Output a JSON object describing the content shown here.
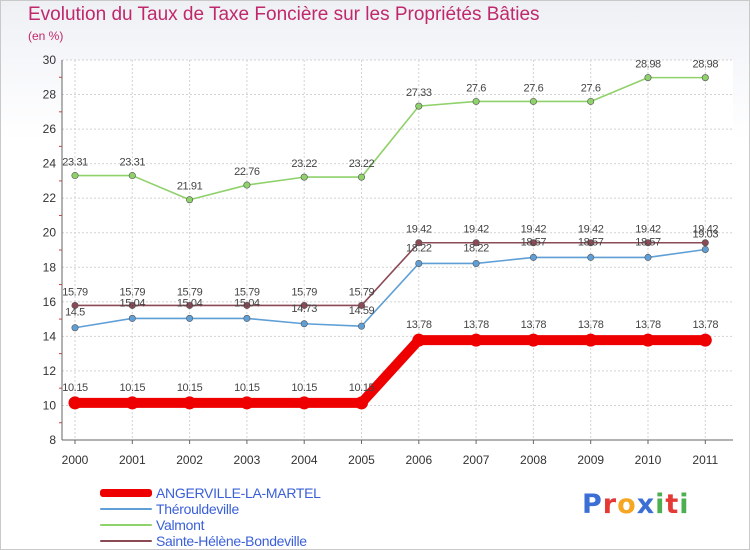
{
  "header": {
    "title": "Evolution du Taux de Taxe Foncière sur les Propriétés Bâties",
    "unit": "(en %)"
  },
  "logo": {
    "text": "Proxiti",
    "letters": [
      "P",
      "r",
      "o",
      "x",
      "i",
      "t",
      "i"
    ],
    "colors": [
      "#3b6fd6",
      "#e53935",
      "#f5a623",
      "#3b6fd6",
      "#4caf50",
      "#e53935",
      "#4caf50"
    ]
  },
  "chart_data": {
    "type": "line",
    "title": "Evolution du Taux de Taxe Foncière sur les Propriétés Bâties",
    "ylabel": "(en %)",
    "xlabel": "",
    "ylim": [
      8,
      30
    ],
    "yticks": [
      8,
      10,
      12,
      14,
      16,
      18,
      20,
      22,
      24,
      26,
      28,
      30
    ],
    "categories": [
      "2000",
      "2001",
      "2002",
      "2003",
      "2004",
      "2005",
      "2006",
      "2007",
      "2008",
      "2009",
      "2010",
      "2011"
    ],
    "legend_position": "bottom-left",
    "series": [
      {
        "name": "ANGERVILLE-LA-MARTEL",
        "color": "#ee0000",
        "values": [
          10.15,
          10.15,
          10.15,
          10.15,
          10.15,
          10.15,
          13.78,
          13.78,
          13.78,
          13.78,
          13.78,
          13.78
        ],
        "labels": [
          "10.15",
          "10.15",
          "10.15",
          "10.15",
          "10.15",
          "10.15",
          "13.78",
          "13.78",
          "13.78",
          "13.78",
          "13.78",
          "13.78"
        ]
      },
      {
        "name": "Thérouldeville",
        "color": "#5f9fd6",
        "values": [
          14.5,
          15.04,
          15.04,
          15.04,
          14.73,
          14.59,
          18.22,
          18.22,
          18.57,
          18.57,
          18.57,
          19.03
        ],
        "labels": [
          "14.5",
          "15.04",
          "15.04",
          "15.04",
          "14.73",
          "14.59",
          "18.22",
          "18.22",
          "18.57",
          "18.57",
          "18.57",
          "19.03"
        ]
      },
      {
        "name": "Valmont",
        "color": "#8fd16a",
        "values": [
          23.31,
          23.31,
          21.91,
          22.76,
          23.22,
          23.22,
          27.33,
          27.6,
          27.6,
          27.6,
          28.98,
          28.98
        ],
        "labels": [
          "23.31",
          "23.31",
          "21.91",
          "22.76",
          "23.22",
          "23.22",
          "27.33",
          "27.6",
          "27.6",
          "27.6",
          "28.98",
          "28.98"
        ]
      },
      {
        "name": "Sainte-Hélène-Bondeville",
        "color": "#8a4a56",
        "values": [
          15.79,
          15.79,
          15.79,
          15.79,
          15.79,
          15.79,
          19.42,
          19.42,
          19.42,
          19.42,
          19.42,
          19.42
        ],
        "labels": [
          "15.79",
          "15.79",
          "15.79",
          "15.79",
          "15.79",
          "15.79",
          "19.42",
          "19.42",
          "19.42",
          "19.42",
          "19.42",
          "19.42"
        ]
      }
    ]
  }
}
